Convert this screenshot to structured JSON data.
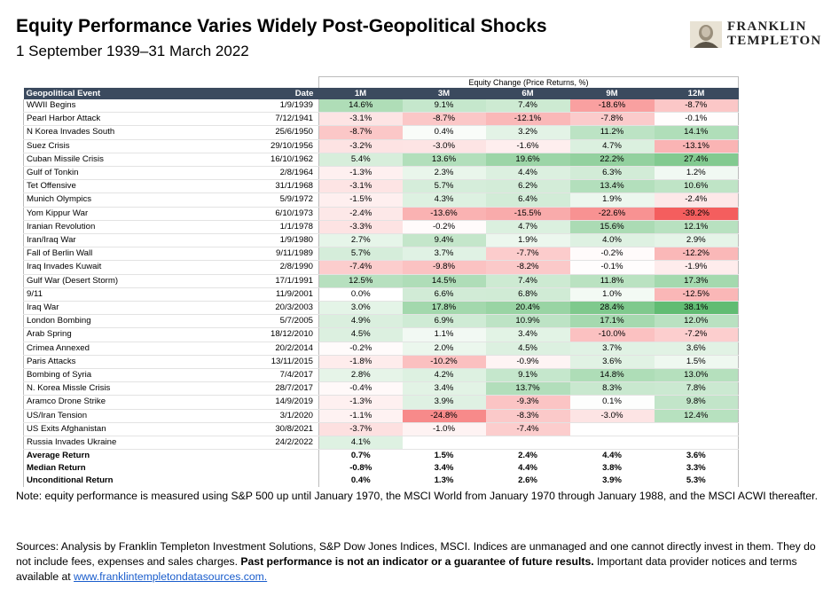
{
  "header": {
    "title": "Equity Performance Varies Widely Post-Geopolitical Shocks",
    "subtitle": "1 September 1939–31 March 2022",
    "logo_line1": "FRANKLIN",
    "logo_line2": "TEMPLETON"
  },
  "table": {
    "group_label": "Equity Change (Price Returns, %)",
    "columns": [
      "Geopolitical Event",
      "Date",
      "1M",
      "3M",
      "6M",
      "9M",
      "12M"
    ],
    "rows": [
      [
        "WWII Begins",
        "1/9/1939",
        "14.6%",
        "9.1%",
        "7.4%",
        "-18.6%",
        "-8.7%"
      ],
      [
        "Pearl Harbor Attack",
        "7/12/1941",
        "-3.1%",
        "-8.7%",
        "-12.1%",
        "-7.8%",
        "-0.1%"
      ],
      [
        "N Korea Invades South",
        "25/6/1950",
        "-8.7%",
        "0.4%",
        "3.2%",
        "11.2%",
        "14.1%"
      ],
      [
        "Suez Crisis",
        "29/10/1956",
        "-3.2%",
        "-3.0%",
        "-1.6%",
        "4.7%",
        "-13.1%"
      ],
      [
        "Cuban Missile Crisis",
        "16/10/1962",
        "5.4%",
        "13.6%",
        "19.6%",
        "22.2%",
        "27.4%"
      ],
      [
        "Gulf of Tonkin",
        "2/8/1964",
        "-1.3%",
        "2.3%",
        "4.4%",
        "6.3%",
        "1.2%"
      ],
      [
        "Tet Offensive",
        "31/1/1968",
        "-3.1%",
        "5.7%",
        "6.2%",
        "13.4%",
        "10.6%"
      ],
      [
        "Munich Olympics",
        "5/9/1972",
        "-1.5%",
        "4.3%",
        "6.4%",
        "1.9%",
        "-2.4%"
      ],
      [
        "Yom Kippur War",
        "6/10/1973",
        "-2.4%",
        "-13.6%",
        "-15.5%",
        "-22.6%",
        "-39.2%"
      ],
      [
        "Iranian Revolution",
        "1/1/1978",
        "-3.3%",
        "-0.2%",
        "4.7%",
        "15.6%",
        "12.1%"
      ],
      [
        "Iran/Iraq War",
        "1/9/1980",
        "2.7%",
        "9.4%",
        "1.9%",
        "4.0%",
        "2.9%"
      ],
      [
        "Fall of Berlin Wall",
        "9/11/1989",
        "5.7%",
        "3.7%",
        "-7.7%",
        "-0.2%",
        "-12.2%"
      ],
      [
        "Iraq Invades Kuwait",
        "2/8/1990",
        "-7.4%",
        "-9.8%",
        "-8.2%",
        "-0.1%",
        "-1.9%"
      ],
      [
        "Gulf War (Desert Storm)",
        "17/1/1991",
        "12.5%",
        "14.5%",
        "7.4%",
        "11.8%",
        "17.3%"
      ],
      [
        " 9/11",
        "11/9/2001",
        "0.0%",
        "6.6%",
        "6.8%",
        "1.0%",
        "-12.5%"
      ],
      [
        "Iraq War",
        "20/3/2003",
        "3.0%",
        "17.8%",
        "20.4%",
        "28.4%",
        "38.1%"
      ],
      [
        "London Bombing",
        "5/7/2005",
        "4.9%",
        "6.9%",
        "10.9%",
        "17.1%",
        "12.0%"
      ],
      [
        "Arab Spring",
        "18/12/2010",
        "4.5%",
        "1.1%",
        "3.4%",
        "-10.0%",
        "-7.2%"
      ],
      [
        "Crimea Annexed",
        "20/2/2014",
        "-0.2%",
        "2.0%",
        "4.5%",
        "3.7%",
        "3.6%"
      ],
      [
        "Paris Attacks",
        "13/11/2015",
        "-1.8%",
        "-10.2%",
        "-0.9%",
        "3.6%",
        "1.5%"
      ],
      [
        "Bombing of Syria",
        "7/4/2017",
        "2.8%",
        "4.2%",
        "9.1%",
        "14.8%",
        "13.0%"
      ],
      [
        "N. Korea Missle Crisis",
        "28/7/2017",
        "-0.4%",
        "3.4%",
        "13.7%",
        "8.3%",
        "7.8%"
      ],
      [
        "Aramco Drone Strike",
        "14/9/2019",
        "-1.3%",
        "3.9%",
        "-9.3%",
        "0.1%",
        "9.8%"
      ],
      [
        "US/Iran Tension",
        "3/1/2020",
        "-1.1%",
        "-24.8%",
        "-8.3%",
        "-3.0%",
        "12.4%"
      ],
      [
        "US Exits Afghanistan",
        "30/8/2021",
        "-3.7%",
        "-1.0%",
        "-7.4%",
        "",
        ""
      ],
      [
        "Russia Invades Ukraine",
        "24/2/2022",
        "4.1%",
        "",
        "",
        "",
        ""
      ]
    ],
    "summary": [
      [
        "Average Return",
        "",
        "0.7%",
        "1.5%",
        "2.4%",
        "4.4%",
        "3.6%"
      ],
      [
        "Median Return",
        "",
        "-0.8%",
        "3.4%",
        "4.4%",
        "3.8%",
        "3.3%"
      ],
      [
        "Unconditional Return",
        "",
        "0.4%",
        "1.3%",
        "2.6%",
        "3.9%",
        "5.3%"
      ]
    ]
  },
  "footer": {
    "note": "Note: equity performance is measured using S&P 500 up until January 1970, the MSCI World from January 1970 through January 1988, and the MSCI ACWI thereafter.",
    "sources_prefix": "Sources: Analysis by Franklin Templeton Investment Solutions, S&P Dow Jones Indices, MSCI. Indices are unmanaged and one cannot directly invest in them. They do not include fees, expenses and sales charges. ",
    "sources_bold": "Past performance is not an indicator or a guarantee of future results.",
    "sources_suffix": " Important data provider notices and terms available at ",
    "link": "www.franklintempletondatasources.com."
  }
}
